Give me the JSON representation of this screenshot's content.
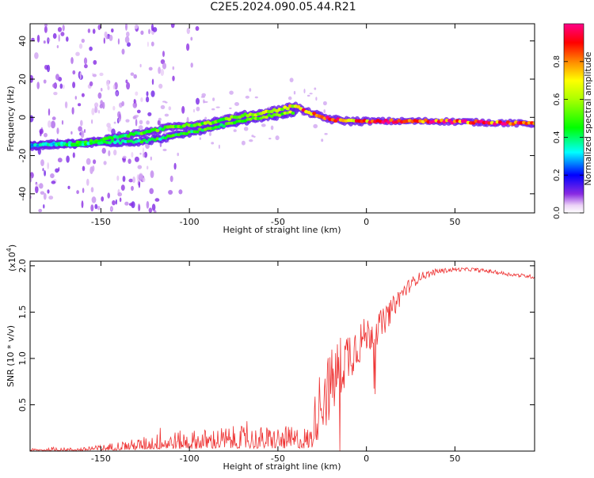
{
  "figure": {
    "title": "C2E5.2024.090.05.44.R21"
  },
  "chart_data": [
    {
      "type": "heatmap",
      "title": "C2E5.2024.090.05.44.R21",
      "xlabel": "Height of straight line (km)",
      "ylabel": "Frequency (Hz)",
      "xlim": [
        -190,
        95
      ],
      "ylim": [
        -50,
        49
      ],
      "x_ticks": [
        -150,
        -100,
        -50,
        0,
        50
      ],
      "y_ticks": [
        -40,
        -20,
        0,
        20,
        40
      ],
      "colorbar": {
        "label": "Normalized spectral amplitude",
        "range": [
          0,
          1
        ],
        "ticks": [
          "0.0",
          "0.2",
          "0.4",
          "0.6",
          "0.8"
        ],
        "tick_values": [
          0,
          0.2,
          0.4,
          0.6,
          0.8
        ]
      },
      "ridge_x": [
        -190,
        -175,
        -160,
        -150,
        -140,
        -125,
        -110,
        -100,
        -90,
        -80,
        -70,
        -60,
        -50,
        -40,
        -35,
        -30,
        -25,
        -20,
        -15,
        -10,
        0,
        10,
        20,
        40,
        60,
        80,
        95
      ],
      "ridge_y": [
        -15,
        -14,
        -13.5,
        -12,
        -10,
        -8,
        -5,
        -4,
        -3,
        -1,
        1,
        2,
        4,
        6,
        3,
        2,
        0,
        -1,
        -1.5,
        -2,
        -2,
        -2,
        -2,
        -2,
        -2.5,
        -3,
        -3.5
      ],
      "ridge_lower_y": [
        -15,
        -14,
        -14,
        -13,
        -13,
        -12.5,
        -10,
        -8,
        -6,
        -4,
        -2,
        0,
        1,
        3
      ],
      "ridge_amplitude": [
        0.35,
        0.4,
        0.45,
        0.45,
        0.45,
        0.5,
        0.5,
        0.5,
        0.55,
        0.55,
        0.55,
        0.6,
        0.6,
        0.7,
        0.85,
        0.85,
        0.9,
        0.9,
        0.85,
        0.8,
        0.85,
        0.9,
        0.95,
        0.95,
        0.9,
        0.9,
        0.9
      ]
    },
    {
      "type": "line",
      "xlabel": "Height of straight line (km)",
      "ylabel": "SNR (10 * v/v)",
      "y_scale_label": "(x10",
      "y_scale_exp": "4",
      "y_scale_close": ")",
      "xlim": [
        -190,
        95
      ],
      "ylim": [
        0,
        2.05
      ],
      "x_ticks": [
        -150,
        -100,
        -50,
        0,
        50
      ],
      "y_ticks": [
        0.5,
        1.0,
        1.5,
        2.0
      ],
      "y_tick_labels": [
        "0.5",
        "1.0",
        "1.5",
        "2.0"
      ],
      "color": "#ee3333",
      "envelope_x": [
        -190,
        -160,
        -150,
        -140,
        -130,
        -120,
        -110,
        -100,
        -90,
        -80,
        -70,
        -60,
        -50,
        -40,
        -32,
        -28,
        -25,
        -20,
        -15,
        -10,
        -5,
        0,
        5,
        10,
        15,
        20,
        25,
        30,
        40,
        50,
        60,
        70,
        80,
        95
      ],
      "envelope_y": [
        0.02,
        0.03,
        0.05,
        0.08,
        0.1,
        0.14,
        0.16,
        0.17,
        0.18,
        0.2,
        0.2,
        0.2,
        0.2,
        0.2,
        0.2,
        0.4,
        0.6,
        0.7,
        0.9,
        1.05,
        1.15,
        1.25,
        1.3,
        1.4,
        1.55,
        1.7,
        1.8,
        1.88,
        1.94,
        1.96,
        1.96,
        1.94,
        1.91,
        1.88
      ],
      "noise": [
        0.005,
        0.01,
        0.02,
        0.03,
        0.05,
        0.08,
        0.1,
        0.12,
        0.13,
        0.14,
        0.15,
        0.15,
        0.15,
        0.15,
        0.15,
        0.3,
        0.4,
        0.4,
        0.35,
        0.3,
        0.25,
        0.2,
        0.18,
        0.15,
        0.12,
        0.1,
        0.07,
        0.05,
        0.03,
        0.02,
        0.02,
        0.02,
        0.02,
        0.02
      ]
    }
  ]
}
